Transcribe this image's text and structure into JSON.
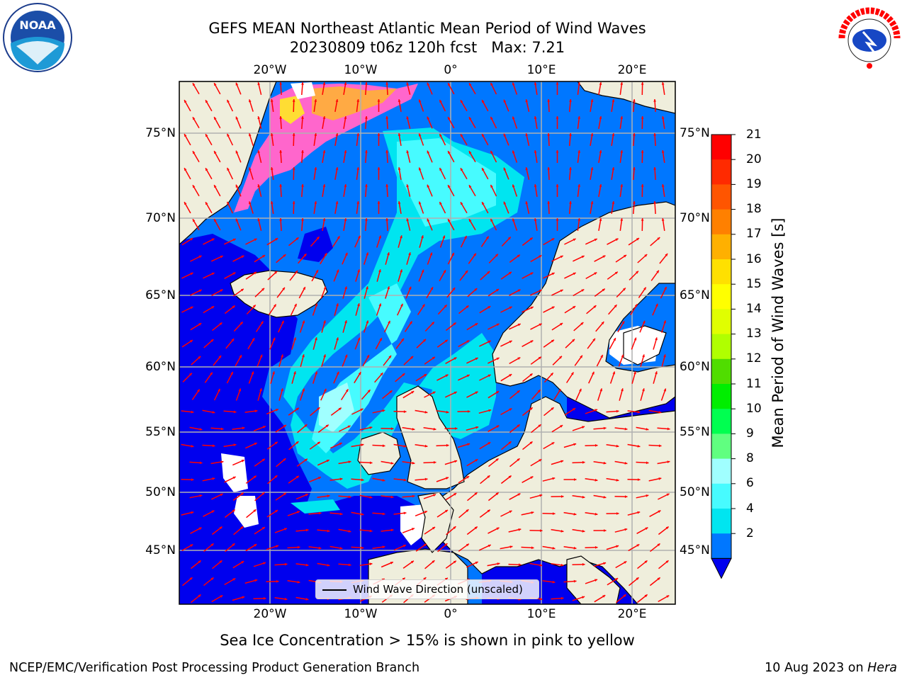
{
  "title": {
    "line1": "GEFS MEAN Northeast Atlantic Mean Period of Wind Waves",
    "line2": "20230809 t06z 120h fcst   Max: 7.21"
  },
  "map": {
    "lon_ticks": [
      "20°W",
      "10°W",
      "0°",
      "10°E",
      "20°E"
    ],
    "lat_ticks": [
      "75°N",
      "70°N",
      "65°N",
      "60°N",
      "55°N",
      "50°N",
      "45°N"
    ],
    "legend_label": "Wind Wave Direction (unscaled)",
    "arrow_color": "#ff0000",
    "land_color": "#efeedc",
    "ocean_colors": {
      "2-4": "#0077ff",
      "below-2": "#0000ee",
      "4-6": "#00e5f0",
      "6-8": "#47fbff",
      "8-9": "#a0ffff"
    }
  },
  "colorbar": {
    "title": "Mean Period of Wind Waves [s]",
    "levels": [
      "21",
      "20",
      "19",
      "18",
      "17",
      "16",
      "15",
      "14",
      "13",
      "12",
      "11",
      "10",
      "9",
      "8",
      "6",
      "4",
      "2"
    ],
    "colors": [
      "#ff0000",
      "#ff2a00",
      "#ff5500",
      "#ff8000",
      "#ffb000",
      "#ffe000",
      "#ffff00",
      "#e0ff00",
      "#b0ff00",
      "#50dd00",
      "#00ee00",
      "#00ff50",
      "#60ff80",
      "#a0ffff",
      "#47fbff",
      "#00e5f0",
      "#0077ff",
      "#0000ee"
    ],
    "extend_color": "#0000ee"
  },
  "caption": "Sea Ice Concentration > 15% is shown in pink to yellow",
  "footer": {
    "left": "NCEP/EMC/Verification Post Processing Product Generation Branch",
    "right_date": "10 Aug 2023 on ",
    "right_host": "Hera"
  },
  "logos": {
    "noaa": "NOAA",
    "nws": "NATIONAL WEATHER SERVICE"
  }
}
